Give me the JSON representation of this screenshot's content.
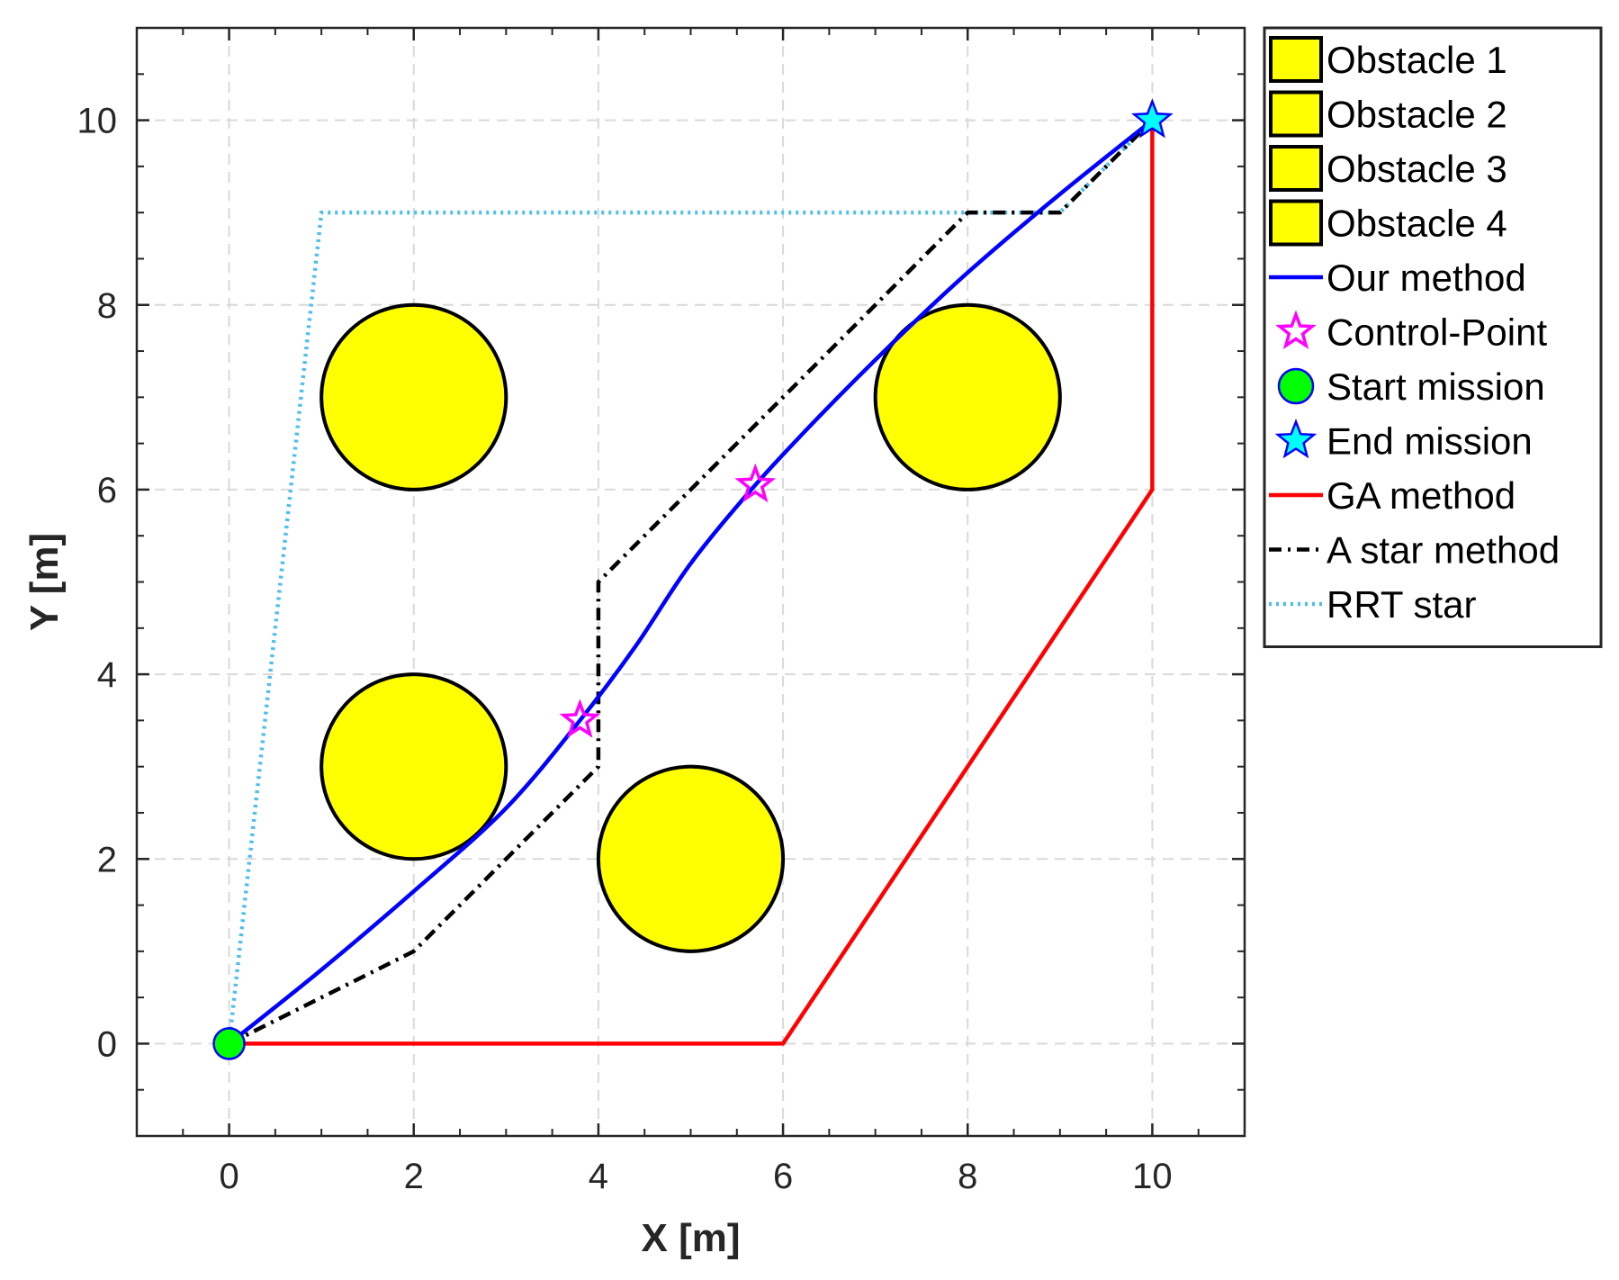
{
  "chart_data": {
    "type": "line",
    "title": "",
    "xlabel": "X [m]",
    "ylabel": "Y [m]",
    "xlim": [
      -1,
      11
    ],
    "ylim": [
      -1,
      11
    ],
    "grid": true,
    "legend_position": "outside-top-right",
    "x_ticks": [
      0,
      2,
      4,
      6,
      8,
      10
    ],
    "y_ticks": [
      0,
      2,
      4,
      6,
      8,
      10
    ],
    "obstacles": [
      {
        "name": "Obstacle 1",
        "cx": 2,
        "cy": 7,
        "r": 1,
        "color": "#ffff00"
      },
      {
        "name": "Obstacle 2",
        "cx": 2,
        "cy": 3,
        "r": 1,
        "color": "#ffff00"
      },
      {
        "name": "Obstacle 3",
        "cx": 5,
        "cy": 2,
        "r": 1,
        "color": "#ffff00"
      },
      {
        "name": "Obstacle 4",
        "cx": 8,
        "cy": 7,
        "r": 1,
        "color": "#ffff00"
      }
    ],
    "series": [
      {
        "name": "Our method",
        "style": "solid",
        "color": "#0000ff",
        "x": [
          0,
          1,
          2,
          3,
          3.8,
          4.4,
          5.0,
          5.7,
          6.4,
          7.2,
          8.0,
          9.0,
          10
        ],
        "y": [
          0,
          0.8,
          1.65,
          2.55,
          3.5,
          4.3,
          5.2,
          6.05,
          6.8,
          7.6,
          8.35,
          9.2,
          10
        ]
      },
      {
        "name": "GA method",
        "style": "solid",
        "color": "#ff0000",
        "x": [
          0,
          6,
          10,
          10
        ],
        "y": [
          0,
          0,
          6,
          10
        ]
      },
      {
        "name": "A star method",
        "style": "dashdot",
        "color": "#000000",
        "x": [
          0,
          2,
          4,
          4,
          8,
          9,
          10
        ],
        "y": [
          0,
          1,
          3,
          5,
          9,
          9,
          10
        ]
      },
      {
        "name": "RRT star",
        "style": "dotted",
        "color": "#4dbeee",
        "x": [
          0,
          1,
          9,
          10
        ],
        "y": [
          0,
          9,
          9,
          10
        ]
      }
    ],
    "control_points": {
      "name": "Control-Point",
      "color": "#ff00ff",
      "x": [
        3.8,
        5.7
      ],
      "y": [
        3.5,
        6.05
      ]
    },
    "start": {
      "name": "Start mission",
      "x": 0,
      "y": 0,
      "color": "#00ff00"
    },
    "end": {
      "name": "End mission",
      "x": 10,
      "y": 10,
      "color": "#00ffff"
    },
    "legend": [
      "Obstacle 1",
      "Obstacle 2",
      "Obstacle 3",
      "Obstacle 4",
      "Our method",
      "Control-Point",
      "Start mission",
      "End mission",
      "GA method",
      "A star method",
      "RRT star"
    ]
  }
}
